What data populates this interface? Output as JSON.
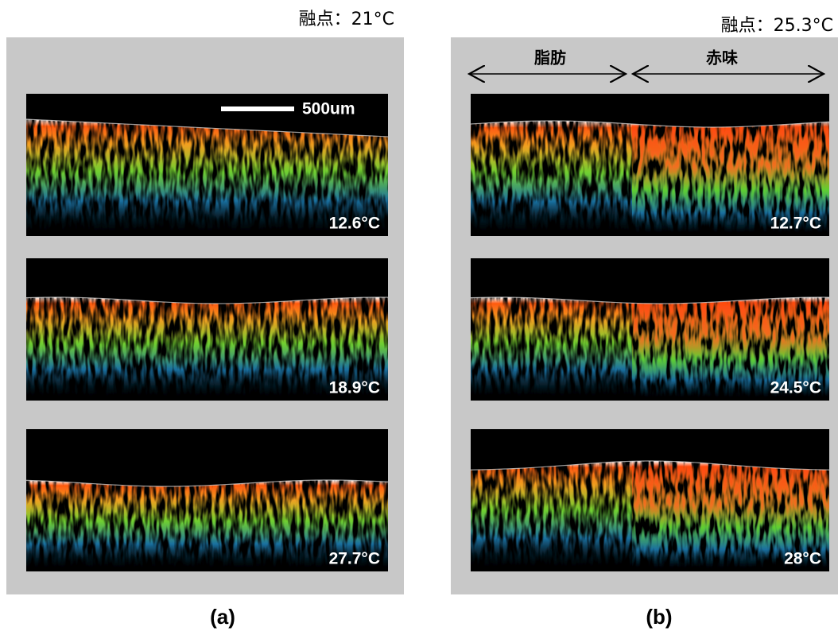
{
  "panels": [
    {
      "melting_point": "融点：21°C",
      "scale_bar": "500um",
      "images": [
        {
          "temperature": "12.6°C"
        },
        {
          "temperature": "18.9°C"
        },
        {
          "temperature": "27.7°C"
        }
      ],
      "caption": "(a)"
    },
    {
      "melting_point": "融点：25.3°C",
      "regions": [
        "脂肪",
        "赤味"
      ],
      "images": [
        {
          "temperature": "12.7°C"
        },
        {
          "temperature": "24.5°C"
        },
        {
          "temperature": "28°C"
        }
      ],
      "caption": "(b)"
    }
  ]
}
